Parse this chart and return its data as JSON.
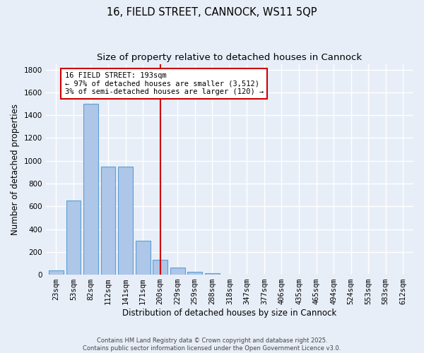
{
  "title_line1": "16, FIELD STREET, CANNOCK, WS11 5QP",
  "title_line2": "Size of property relative to detached houses in Cannock",
  "xlabel": "Distribution of detached houses by size in Cannock",
  "ylabel": "Number of detached properties",
  "bar_labels": [
    "23sqm",
    "53sqm",
    "82sqm",
    "112sqm",
    "141sqm",
    "171sqm",
    "200sqm",
    "229sqm",
    "259sqm",
    "288sqm",
    "318sqm",
    "347sqm",
    "377sqm",
    "406sqm",
    "435sqm",
    "465sqm",
    "494sqm",
    "524sqm",
    "553sqm",
    "583sqm",
    "612sqm"
  ],
  "bar_values": [
    40,
    650,
    1500,
    950,
    950,
    295,
    130,
    65,
    25,
    10,
    0,
    0,
    0,
    0,
    0,
    0,
    0,
    0,
    0,
    0,
    0
  ],
  "bar_color": "#aec6e8",
  "bar_edgecolor": "#5a9fd4",
  "vline_x_index": 6,
  "vline_color": "#cc0000",
  "annotation_text": "16 FIELD STREET: 193sqm\n← 97% of detached houses are smaller (3,512)\n3% of semi-detached houses are larger (120) →",
  "annotation_box_edgecolor": "#cc0000",
  "annotation_box_facecolor": "#ffffff",
  "ylim": [
    0,
    1850
  ],
  "yticks": [
    0,
    200,
    400,
    600,
    800,
    1000,
    1200,
    1400,
    1600,
    1800
  ],
  "bg_color": "#e8eef8",
  "grid_color": "#ffffff",
  "footer_text": "Contains HM Land Registry data © Crown copyright and database right 2025.\nContains public sector information licensed under the Open Government Licence v3.0.",
  "title_fontsize": 10.5,
  "subtitle_fontsize": 9.5,
  "axis_label_fontsize": 8.5,
  "tick_fontsize": 7.5,
  "annotation_fontsize": 7.5
}
